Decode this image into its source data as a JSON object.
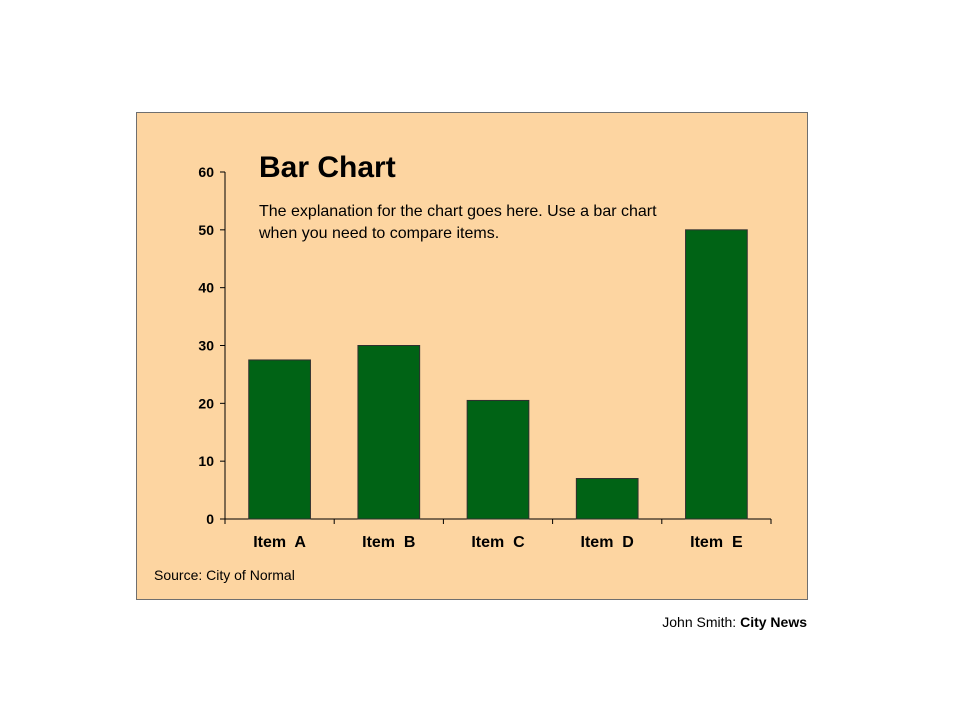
{
  "chart_data": {
    "type": "bar",
    "title": "Bar Chart",
    "subtitle": "The explanation for the chart goes here. Use a bar chart when you need to compare items.",
    "categories": [
      "Item  A",
      "Item  B",
      "Item  C",
      "Item  D",
      "Item  E"
    ],
    "values": [
      27.5,
      30,
      20.5,
      7,
      50
    ],
    "yticks": [
      0,
      10,
      20,
      30,
      40,
      50,
      60
    ],
    "ylim": [
      0,
      60
    ],
    "xlabel": "",
    "ylabel": "",
    "grid": false,
    "legend": "none",
    "bar_color": "#006315",
    "background_color": "#fdd5a1"
  },
  "source_text": "Source: City of Normal",
  "credit": {
    "author": "John Smith:",
    "org": "City News"
  }
}
